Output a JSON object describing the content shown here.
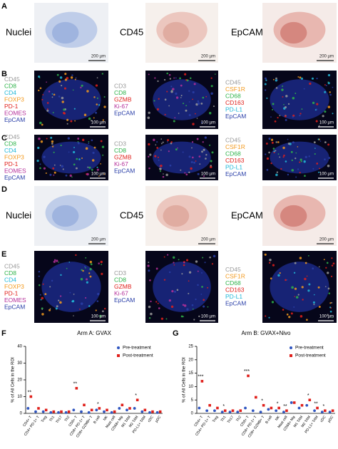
{
  "panels": [
    {
      "letter": "A",
      "kind": "ihc",
      "images": [
        {
          "label": "Nuclei",
          "scale": "200 µm"
        },
        {
          "label": "CD45",
          "scale": "200 µm"
        },
        {
          "label": "EpCAM",
          "scale": "200 µm"
        }
      ]
    },
    {
      "letter": "B",
      "kind": "if",
      "images": [
        {
          "markers": [
            {
              "text": "CD45",
              "color": "#9a9a9a"
            },
            {
              "text": "CD8",
              "color": "#2fb34a"
            },
            {
              "text": "CD4",
              "color": "#22b8d8"
            },
            {
              "text": "FOXP3",
              "color": "#f39a1e"
            },
            {
              "text": "PD-1",
              "color": "#e0201b"
            },
            {
              "text": "EOMES",
              "color": "#b5309a"
            },
            {
              "text": "EpCAM",
              "color": "#2a3fa8"
            }
          ],
          "scale": "100 µm"
        },
        {
          "markers": [
            {
              "text": "CD3",
              "color": "#9a9a9a"
            },
            {
              "text": "CD8",
              "color": "#2fb34a"
            },
            {
              "text": "GZMB",
              "color": "#e0201b"
            },
            {
              "text": "Ki-67",
              "color": "#b5309a"
            },
            {
              "text": "EpCAM",
              "color": "#2a3fa8"
            }
          ],
          "scale": "100 µm"
        },
        {
          "markers": [
            {
              "text": "CD45",
              "color": "#9a9a9a"
            },
            {
              "text": "CSF1R",
              "color": "#f39a1e"
            },
            {
              "text": "CD68",
              "color": "#2fb34a"
            },
            {
              "text": "CD163",
              "color": "#e0201b"
            },
            {
              "text": "PD-L1",
              "color": "#22b8d8"
            },
            {
              "text": "EpCAM",
              "color": "#2a3fa8"
            }
          ],
          "scale": "100 µm"
        }
      ]
    },
    {
      "letter": "C",
      "kind": "if",
      "images": [
        {
          "markers": [
            {
              "text": "CD45",
              "color": "#9a9a9a"
            },
            {
              "text": "CD8",
              "color": "#2fb34a"
            },
            {
              "text": "CD4",
              "color": "#22b8d8"
            },
            {
              "text": "FOXP3",
              "color": "#f39a1e"
            },
            {
              "text": "PD-1",
              "color": "#e0201b"
            },
            {
              "text": "EOMES",
              "color": "#b5309a"
            },
            {
              "text": "EpCAM",
              "color": "#2a3fa8"
            }
          ],
          "scale": "100 µm"
        },
        {
          "markers": [
            {
              "text": "CD3",
              "color": "#9a9a9a"
            },
            {
              "text": "CD8",
              "color": "#2fb34a"
            },
            {
              "text": "GZMB",
              "color": "#e0201b"
            },
            {
              "text": "Ki-67",
              "color": "#b5309a"
            },
            {
              "text": "EpCAM",
              "color": "#2a3fa8"
            }
          ],
          "scale": "100 µm"
        },
        {
          "markers": [
            {
              "text": "CD45",
              "color": "#9a9a9a"
            },
            {
              "text": "CSF1R",
              "color": "#f39a1e"
            },
            {
              "text": "CD68",
              "color": "#2fb34a"
            },
            {
              "text": "CD163",
              "color": "#e0201b"
            },
            {
              "text": "PD-L1",
              "color": "#22b8d8"
            },
            {
              "text": "EpCAM",
              "color": "#2a3fa8"
            }
          ],
          "scale": "100 µm"
        }
      ]
    },
    {
      "letter": "D",
      "kind": "ihc",
      "images": [
        {
          "label": "Nuclei",
          "scale": "200 µm"
        },
        {
          "label": "CD45",
          "scale": "200 µm"
        },
        {
          "label": "EpCAM",
          "scale": "200 µm"
        }
      ]
    },
    {
      "letter": "E",
      "kind": "if",
      "images": [
        {
          "markers": [
            {
              "text": "CD45",
              "color": "#9a9a9a"
            },
            {
              "text": "CD8",
              "color": "#2fb34a"
            },
            {
              "text": "CD4",
              "color": "#22b8d8"
            },
            {
              "text": "FOXP3",
              "color": "#f39a1e"
            },
            {
              "text": "PD-1",
              "color": "#e0201b"
            },
            {
              "text": "EOMES",
              "color": "#b5309a"
            },
            {
              "text": "EpCAM",
              "color": "#2a3fa8"
            }
          ],
          "scale": "100 µm"
        },
        {
          "markers": [
            {
              "text": "CD3",
              "color": "#9a9a9a"
            },
            {
              "text": "CD8",
              "color": "#2fb34a"
            },
            {
              "text": "GZMB",
              "color": "#e0201b"
            },
            {
              "text": "Ki-67",
              "color": "#b5309a"
            },
            {
              "text": "EpCAM",
              "color": "#2a3fa8"
            }
          ],
          "scale": "100 µm"
        },
        {
          "markers": [
            {
              "text": "CD45",
              "color": "#9a9a9a"
            },
            {
              "text": "CSF1R",
              "color": "#f39a1e"
            },
            {
              "text": "CD68",
              "color": "#2fb34a"
            },
            {
              "text": "CD163",
              "color": "#e0201b"
            },
            {
              "text": "PD-L1",
              "color": "#22b8d8"
            },
            {
              "text": "EpCAM",
              "color": "#2a3fa8"
            }
          ],
          "scale": "100 µm"
        }
      ]
    }
  ],
  "chart_data": [
    {
      "type": "scatter",
      "panel": "F",
      "title": "Arm A: GVAX",
      "ylabel": "% of All Cells in the ROI",
      "categories": [
        "CD4+ T",
        "CD4+ PD-1+ T",
        "Treg",
        "Th1",
        "Th17",
        "Th2",
        "CD8+ T",
        "CD8+ PD-1+ T",
        "CD8+ GZMB+ T",
        "B cell",
        "NK",
        "Mast cell",
        "CD68+ Mφ",
        "M1 TAM",
        "M2 TAM",
        "PD-L1+ TAM",
        "cDC",
        "pDC"
      ],
      "series": [
        {
          "name": "Pre-treatment",
          "color": "#2f55c0",
          "marker": "circle",
          "values": [
            3,
            1,
            1,
            0.5,
            0.5,
            0.5,
            2,
            1,
            0.5,
            2,
            1,
            0.5,
            3,
            2,
            3,
            1,
            0.5,
            0.5
          ]
        },
        {
          "name": "Post-treatment",
          "color": "#e0201b",
          "marker": "square",
          "values": [
            10,
            3,
            2,
            1,
            1,
            1,
            15,
            5,
            2,
            3,
            2,
            1,
            5,
            3,
            8,
            2,
            1,
            1
          ]
        }
      ],
      "significance": [
        "**",
        null,
        null,
        null,
        null,
        null,
        "**",
        null,
        null,
        "*",
        null,
        null,
        null,
        null,
        "*",
        null,
        null,
        null
      ],
      "ylim": [
        0,
        40
      ],
      "yticks": [
        0,
        10,
        20,
        30,
        40
      ],
      "legend": "upper right"
    },
    {
      "type": "scatter",
      "panel": "G",
      "title": "Arm B: GVAX+Nivo",
      "ylabel": "% of All Cells in the ROI",
      "categories": [
        "CD4+ T",
        "CD4+ PD-1+ T",
        "Treg",
        "Th1",
        "Th17",
        "Th2",
        "CD8+ T",
        "CD8+ PD-1+ T",
        "CD8+ GZMB+ T",
        "B cell",
        "NK",
        "Mast cell",
        "CD68+ Mφ",
        "M1 TAM",
        "M2 TAM",
        "PD-L1+ TAM",
        "cDC",
        "pDC"
      ],
      "series": [
        {
          "name": "Pre-treatment",
          "color": "#2f55c0",
          "marker": "circle",
          "values": [
            2,
            1,
            1,
            0.5,
            0.5,
            0.5,
            2,
            1,
            0.5,
            1.5,
            1,
            0.5,
            4,
            2,
            3,
            1,
            0.5,
            0.5
          ]
        },
        {
          "name": "Post-treatment",
          "color": "#e0201b",
          "marker": "square",
          "values": [
            12,
            3,
            2,
            1,
            1,
            1,
            14,
            6,
            3,
            2,
            2,
            1,
            4,
            3,
            5,
            2,
            1,
            1
          ]
        }
      ],
      "significance": [
        "***",
        null,
        null,
        "*",
        null,
        null,
        "***",
        null,
        "*",
        null,
        "*",
        "**",
        null,
        null,
        "*",
        "**",
        "*",
        null
      ],
      "ylim": [
        0,
        25
      ],
      "yticks": [
        0,
        5,
        10,
        15,
        20,
        25
      ],
      "legend": "upper right"
    }
  ]
}
